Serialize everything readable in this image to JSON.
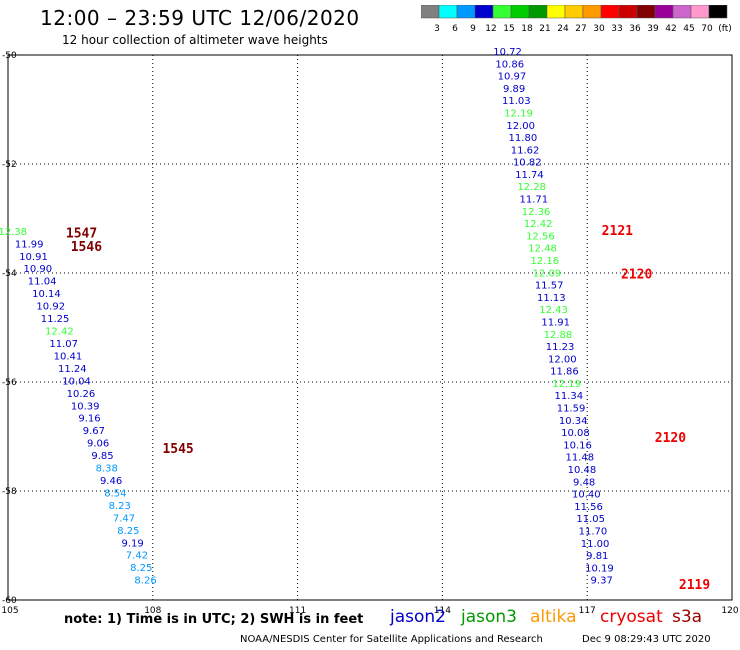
{
  "header": {
    "title": "12:00 – 23:59 UTC 12/06/2020",
    "subtitle": "12 hour collection of altimeter wave heights"
  },
  "colorbar": {
    "colors": [
      "#808080",
      "#00ffff",
      "#0099ff",
      "#0000cc",
      "#33ff33",
      "#00cc00",
      "#009900",
      "#ffff00",
      "#ffcc00",
      "#ff9900",
      "#ff0000",
      "#cc0000",
      "#800000",
      "#990099",
      "#cc66cc",
      "#ff99cc",
      "#000000"
    ],
    "labels": [
      "3",
      "6",
      "9",
      "12",
      "15",
      "18",
      "21",
      "24",
      "27",
      "30",
      "33",
      "36",
      "39",
      "42",
      "45",
      "70",
      "(ft)"
    ]
  },
  "axes": {
    "lat_labels": [
      "-50",
      "-52",
      "-54",
      "-56",
      "-58",
      "-60"
    ],
    "lon_labels": [
      "105",
      "108",
      "111",
      "114",
      "117",
      "120"
    ]
  },
  "track_west": [
    {
      "v": "12.38",
      "c": "#33ff33"
    },
    {
      "v": "11.99",
      "c": "#0000cc"
    },
    {
      "v": "10.91",
      "c": "#0000cc"
    },
    {
      "v": "10.90",
      "c": "#0000cc"
    },
    {
      "v": "11.04",
      "c": "#0000cc"
    },
    {
      "v": "10.14",
      "c": "#0000cc"
    },
    {
      "v": "10.92",
      "c": "#0000cc"
    },
    {
      "v": "11.25",
      "c": "#0000cc"
    },
    {
      "v": "12.42",
      "c": "#33ff33"
    },
    {
      "v": "11.07",
      "c": "#0000cc"
    },
    {
      "v": "10.41",
      "c": "#0000cc"
    },
    {
      "v": "11.24",
      "c": "#0000cc"
    },
    {
      "v": "10.04",
      "c": "#0000cc"
    },
    {
      "v": "10.26",
      "c": "#0000cc"
    },
    {
      "v": "10.39",
      "c": "#0000cc"
    },
    {
      "v": "9.16",
      "c": "#0000cc"
    },
    {
      "v": "9.67",
      "c": "#0000cc"
    },
    {
      "v": "9.06",
      "c": "#0000cc"
    },
    {
      "v": "9.85",
      "c": "#0000cc"
    },
    {
      "v": "8.38",
      "c": "#0099ff"
    },
    {
      "v": "9.46",
      "c": "#0000cc"
    },
    {
      "v": "8.54",
      "c": "#0099ff"
    },
    {
      "v": "8.23",
      "c": "#0099ff"
    },
    {
      "v": "7.47",
      "c": "#0099ff"
    },
    {
      "v": "8.25",
      "c": "#0099ff"
    },
    {
      "v": "9.19",
      "c": "#0000cc"
    },
    {
      "v": "7.42",
      "c": "#0099ff"
    },
    {
      "v": "8.25",
      "c": "#0099ff"
    },
    {
      "v": "8.26",
      "c": "#0099ff"
    }
  ],
  "track_east": [
    {
      "v": "10.72",
      "c": "#0000cc"
    },
    {
      "v": "10.86",
      "c": "#0000cc"
    },
    {
      "v": "10.97",
      "c": "#0000cc"
    },
    {
      "v": "9.89",
      "c": "#0000cc"
    },
    {
      "v": "11.03",
      "c": "#0000cc"
    },
    {
      "v": "12.19",
      "c": "#33ff33"
    },
    {
      "v": "12.00",
      "c": "#0000cc"
    },
    {
      "v": "11.80",
      "c": "#0000cc"
    },
    {
      "v": "11.62",
      "c": "#0000cc"
    },
    {
      "v": "10.82",
      "c": "#0000cc"
    },
    {
      "v": "11.74",
      "c": "#0000cc"
    },
    {
      "v": "12.28",
      "c": "#33ff33"
    },
    {
      "v": "11.71",
      "c": "#0000cc"
    },
    {
      "v": "12.36",
      "c": "#33ff33"
    },
    {
      "v": "12.42",
      "c": "#33ff33"
    },
    {
      "v": "12.56",
      "c": "#33ff33"
    },
    {
      "v": "12.48",
      "c": "#33ff33"
    },
    {
      "v": "12.16",
      "c": "#33ff33"
    },
    {
      "v": "12.09",
      "c": "#33ff33"
    },
    {
      "v": "11.57",
      "c": "#0000cc"
    },
    {
      "v": "11.13",
      "c": "#0000cc"
    },
    {
      "v": "12.43",
      "c": "#33ff33"
    },
    {
      "v": "11.91",
      "c": "#0000cc"
    },
    {
      "v": "12.88",
      "c": "#33ff33"
    },
    {
      "v": "11.23",
      "c": "#0000cc"
    },
    {
      "v": "12.00",
      "c": "#0000cc"
    },
    {
      "v": "11.86",
      "c": "#0000cc"
    },
    {
      "v": "12.19",
      "c": "#33ff33"
    },
    {
      "v": "11.34",
      "c": "#0000cc"
    },
    {
      "v": "11.59",
      "c": "#0000cc"
    },
    {
      "v": "10.34",
      "c": "#0000cc"
    },
    {
      "v": "10.08",
      "c": "#0000cc"
    },
    {
      "v": "10.16",
      "c": "#0000cc"
    },
    {
      "v": "11.48",
      "c": "#0000cc"
    },
    {
      "v": "10.48",
      "c": "#0000cc"
    },
    {
      "v": "9.48",
      "c": "#0000cc"
    },
    {
      "v": "10.40",
      "c": "#0000cc"
    },
    {
      "v": "11.56",
      "c": "#0000cc"
    },
    {
      "v": "11.05",
      "c": "#0000cc"
    },
    {
      "v": "11.70",
      "c": "#0000cc"
    },
    {
      "v": "11.00",
      "c": "#0000cc"
    },
    {
      "v": "9.81",
      "c": "#0000cc"
    },
    {
      "v": "10.19",
      "c": "#0000cc"
    },
    {
      "v": "9.37",
      "c": "#0000cc"
    }
  ],
  "time_labels": [
    {
      "t": "1547",
      "c": "#800000"
    },
    {
      "t": "1546",
      "c": "#800000"
    },
    {
      "t": "1545",
      "c": "#800000"
    },
    {
      "t": "2121",
      "c": "#ee0000"
    },
    {
      "t": "2120",
      "c": "#ee0000"
    },
    {
      "t": "2120",
      "c": "#ee0000"
    },
    {
      "t": "2119",
      "c": "#ee0000"
    }
  ],
  "legend": {
    "note": "note:  1) Time is in UTC;  2) SWH is in feet",
    "satellites": [
      {
        "name": "jason2",
        "color": "#0000cc"
      },
      {
        "name": "jason3",
        "color": "#009900"
      },
      {
        "name": "altika",
        "color": "#ff9900"
      },
      {
        "name": "cryosat",
        "color": "#ee0000"
      },
      {
        "name": "s3a",
        "color": "#990000"
      }
    ]
  },
  "footer": {
    "credit": "NOAA/NESDIS Center for Satellite Applications and Research",
    "timestamp": "Dec  9 08:29:43 UTC 2020"
  }
}
